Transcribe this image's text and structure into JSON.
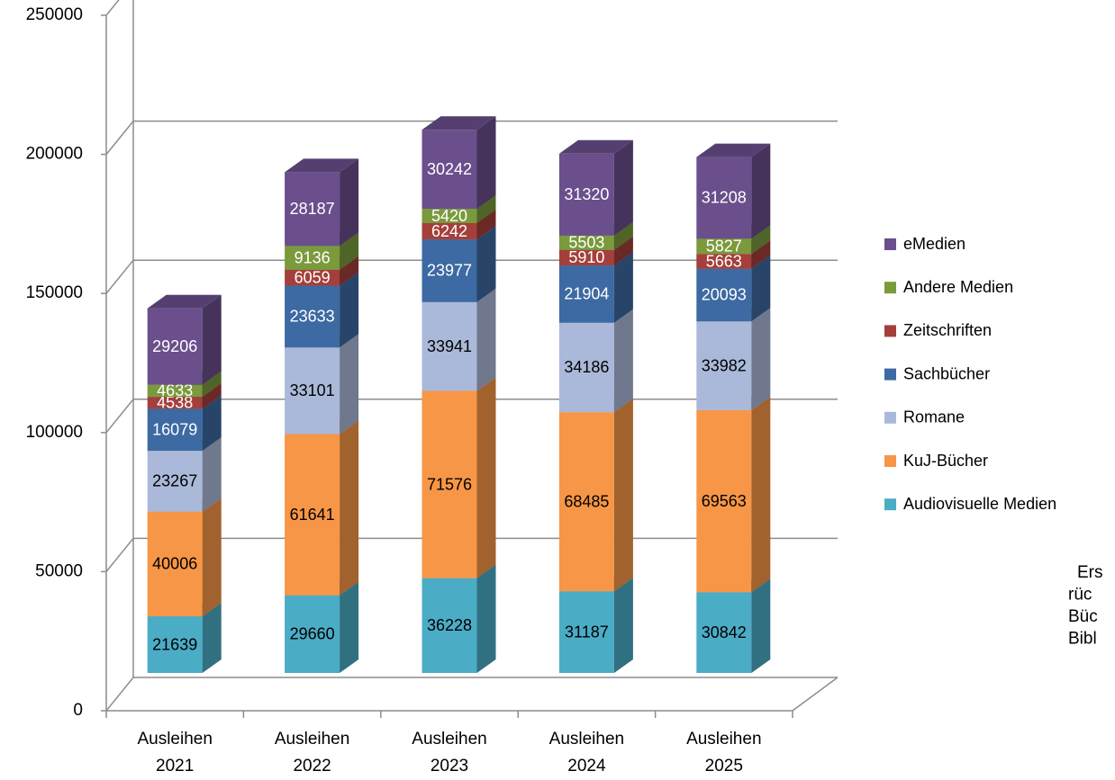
{
  "chart_data": {
    "type": "bar3d_stacked",
    "categories": [
      "Ausleihen 2021",
      "Ausleihen 2022",
      "Ausleihen 2023",
      "Ausleihen 2024",
      "Ausleihen 2025"
    ],
    "series": [
      {
        "name": "Audiovisuelle Medien",
        "color": "#4bacc6",
        "label_color": "#000000",
        "values": [
          21639,
          29660,
          36228,
          31187,
          30842
        ]
      },
      {
        "name": "KuJ-Bücher",
        "color": "#f79646",
        "label_color": "#000000",
        "values": [
          40006,
          61641,
          71576,
          68485,
          69563
        ]
      },
      {
        "name": "Romane",
        "color": "#aab9d9",
        "label_color": "#000000",
        "values": [
          23267,
          33101,
          33941,
          34186,
          33982
        ]
      },
      {
        "name": "Sachbücher",
        "color": "#3d6aa2",
        "label_color": "#ffffff",
        "values": [
          16079,
          23633,
          23977,
          21904,
          20093
        ]
      },
      {
        "name": "Zeitschriften",
        "color": "#a53f3b",
        "label_color": "#ffffff",
        "values": [
          4538,
          6059,
          6242,
          5910,
          5663
        ]
      },
      {
        "name": "Andere Medien",
        "color": "#7a9a3c",
        "label_color": "#ffffff",
        "values": [
          4633,
          9136,
          5420,
          5503,
          5827
        ]
      },
      {
        "name": "eMedien",
        "color": "#6a4f8c",
        "label_color": "#ffffff",
        "values": [
          29206,
          28187,
          30242,
          31320,
          31208
        ]
      }
    ],
    "ylim": [
      0,
      250000
    ],
    "yticks": [
      0,
      50000,
      100000,
      150000,
      200000,
      250000
    ],
    "grid": true,
    "legend": "right",
    "annotation": [
      "Ers",
      "rüc",
      "Büc",
      "Bibl"
    ]
  }
}
